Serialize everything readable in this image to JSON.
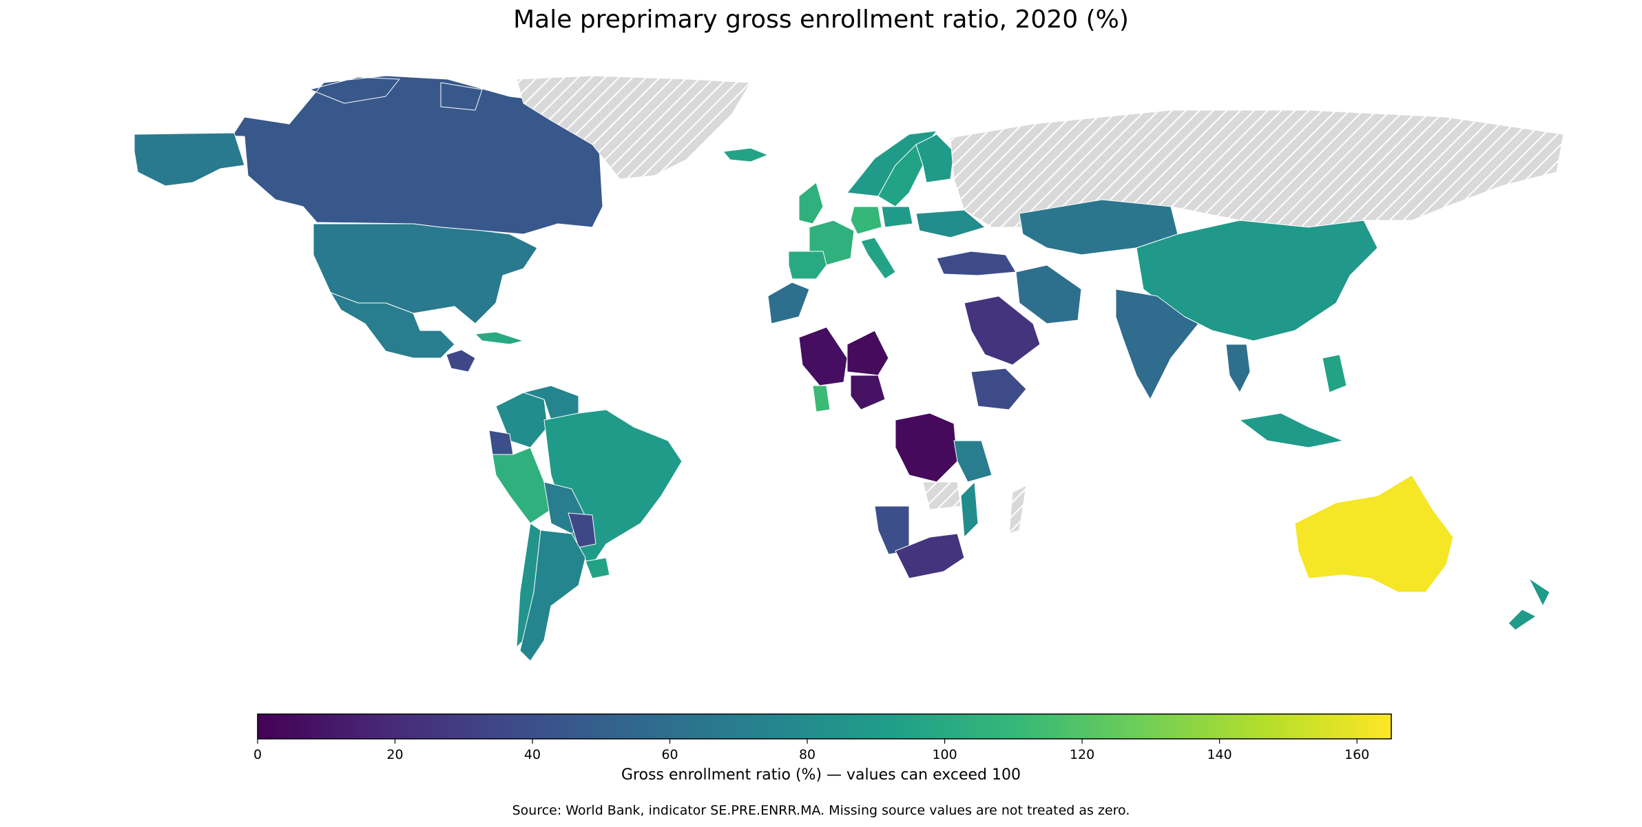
{
  "title": "Male preprimary gross enrollment ratio, 2020 (%)",
  "colorbar": {
    "label": "Gross enrollment ratio (%) — values can exceed 100",
    "min": 0,
    "max": 165,
    "ticks": [
      0,
      20,
      40,
      60,
      80,
      100,
      120,
      140,
      160
    ],
    "colormap": "viridis",
    "stops": [
      "#440154",
      "#482878",
      "#3e4a89",
      "#31688e",
      "#26828e",
      "#1f9e89",
      "#35b779",
      "#6ece58",
      "#b5de2b",
      "#fde725"
    ]
  },
  "source": "Source: World Bank, indicator SE.PRE.ENRR.MA. Missing source values are not treated as zero.",
  "missing_style": "hatched light grey",
  "chart_data": {
    "type": "choropleth",
    "metric": "Male preprimary gross enrollment ratio (%)",
    "year": 2020,
    "regions": [
      {
        "name": "Canada",
        "value": 45
      },
      {
        "name": "United States",
        "value": 68
      },
      {
        "name": "Mexico",
        "value": 70
      },
      {
        "name": "Guatemala",
        "value": 35
      },
      {
        "name": "Cuba",
        "value": 100
      },
      {
        "name": "Colombia",
        "value": 80
      },
      {
        "name": "Venezuela",
        "value": 75
      },
      {
        "name": "Ecuador",
        "value": 40
      },
      {
        "name": "Peru",
        "value": 105
      },
      {
        "name": "Brazil",
        "value": 90
      },
      {
        "name": "Bolivia",
        "value": 70
      },
      {
        "name": "Paraguay",
        "value": 35
      },
      {
        "name": "Uruguay",
        "value": 95
      },
      {
        "name": "Chile",
        "value": 85
      },
      {
        "name": "Argentina",
        "value": 75
      },
      {
        "name": "Greenland",
        "value": null
      },
      {
        "name": "Iceland",
        "value": 95
      },
      {
        "name": "Norway",
        "value": 90
      },
      {
        "name": "Sweden",
        "value": 95
      },
      {
        "name": "Finland",
        "value": 90
      },
      {
        "name": "United Kingdom",
        "value": 105
      },
      {
        "name": "France",
        "value": 105
      },
      {
        "name": "Spain",
        "value": 100
      },
      {
        "name": "Germany",
        "value": 110
      },
      {
        "name": "Poland",
        "value": 90
      },
      {
        "name": "Italy",
        "value": 95
      },
      {
        "name": "Ukraine",
        "value": 80
      },
      {
        "name": "Russia",
        "value": null
      },
      {
        "name": "Turkey",
        "value": 38
      },
      {
        "name": "Morocco",
        "value": 60
      },
      {
        "name": "Mali",
        "value": 6
      },
      {
        "name": "Niger",
        "value": 5
      },
      {
        "name": "Nigeria",
        "value": 8
      },
      {
        "name": "Ghana",
        "value": 112
      },
      {
        "name": "Saudi Arabia",
        "value": 25
      },
      {
        "name": "Iran",
        "value": 60
      },
      {
        "name": "Kazakhstan",
        "value": 65
      },
      {
        "name": "China",
        "value": 88
      },
      {
        "name": "India",
        "value": 58
      },
      {
        "name": "Thailand",
        "value": 60
      },
      {
        "name": "Indonesia",
        "value": 90
      },
      {
        "name": "Philippines",
        "value": 95
      },
      {
        "name": "Ethiopia",
        "value": 38
      },
      {
        "name": "DR Congo",
        "value": 4
      },
      {
        "name": "Tanzania",
        "value": 70
      },
      {
        "name": "Zambia",
        "value": null
      },
      {
        "name": "Namibia",
        "value": 40
      },
      {
        "name": "South Africa",
        "value": 25
      },
      {
        "name": "Mozambique",
        "value": 80
      },
      {
        "name": "Madagascar",
        "value": null
      },
      {
        "name": "Australia",
        "value": 163
      },
      {
        "name": "New Zealand",
        "value": 90
      }
    ]
  }
}
